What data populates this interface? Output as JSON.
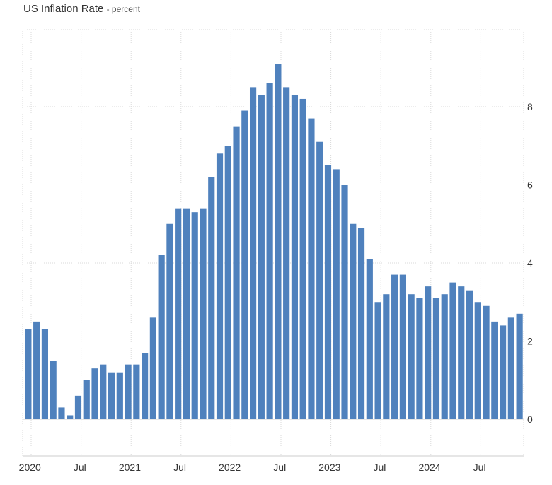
{
  "chart_data": {
    "type": "bar",
    "title": "US Inflation Rate",
    "unit_label": "percent",
    "xlabel": "",
    "ylabel": "",
    "x_start": "2020-01",
    "values": [
      2.3,
      2.5,
      2.3,
      1.5,
      0.3,
      0.1,
      0.6,
      1.0,
      1.3,
      1.4,
      1.2,
      1.2,
      1.4,
      1.4,
      1.7,
      2.6,
      4.2,
      5.0,
      5.4,
      5.4,
      5.3,
      5.4,
      6.2,
      6.8,
      7.0,
      7.5,
      7.9,
      8.5,
      8.3,
      8.6,
      9.1,
      8.5,
      8.3,
      8.2,
      7.7,
      7.1,
      6.5,
      6.4,
      6.0,
      5.0,
      4.9,
      4.1,
      3.0,
      3.2,
      3.7,
      3.7,
      3.2,
      3.1,
      3.4,
      3.1,
      3.2,
      3.5,
      3.4,
      3.3,
      3.0,
      2.9,
      2.5,
      2.4,
      2.6,
      2.7
    ],
    "x_tick_labels": [
      "2020",
      "Jul",
      "2021",
      "Jul",
      "2022",
      "Jul",
      "2023",
      "Jul",
      "2024",
      "Jul"
    ],
    "y_tick_labels": [
      "0",
      "2",
      "4",
      "6",
      "8"
    ],
    "y_ticks": [
      0,
      2,
      4,
      6,
      8
    ],
    "ylim": [
      -1,
      10
    ],
    "bar_color": "#4f81bd",
    "grid": true,
    "legend": "none"
  }
}
